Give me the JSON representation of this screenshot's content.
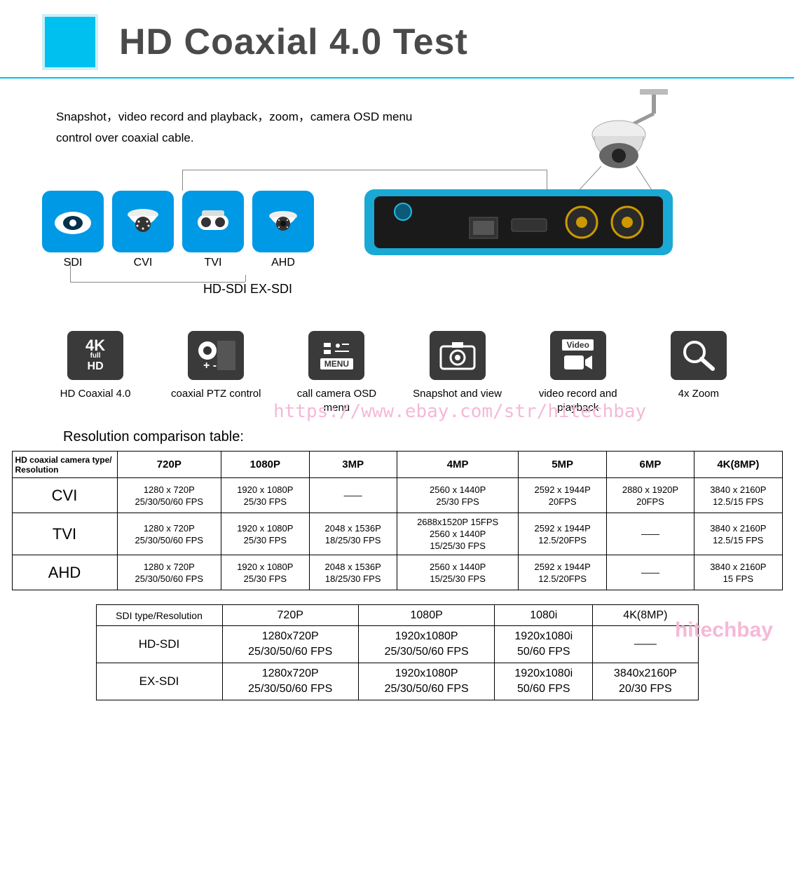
{
  "header": {
    "title": "HD Coaxial 4.0 Test",
    "square_color": "#00c0f0",
    "square_border": "#cceff8",
    "underline_color": "#00c0f0",
    "title_color": "#4a4a4a"
  },
  "intro": {
    "text": "Snapshot，video record and playback，zoom，camera OSD menu control over coaxial cable."
  },
  "camera_icons": [
    {
      "name": "sdi-icon",
      "label": "SDI"
    },
    {
      "name": "cvi-icon",
      "label": "CVI"
    },
    {
      "name": "tvi-icon",
      "label": "TVI"
    },
    {
      "name": "ahd-icon",
      "label": "AHD"
    }
  ],
  "sdi_subtypes": "HD-SDI   EX-SDI",
  "features": [
    {
      "name": "4k-icon",
      "icon_text": "4K HD",
      "label": "HD Coaxial 4.0"
    },
    {
      "name": "ptz-icon",
      "icon_text": "PTZ",
      "label": "coaxial PTZ control"
    },
    {
      "name": "menu-icon",
      "icon_text": "MENU",
      "label": "call camera OSD menu"
    },
    {
      "name": "snapshot-icon",
      "icon_text": "◉",
      "label": "Snapshot and view"
    },
    {
      "name": "video-icon",
      "icon_text": "Video",
      "label": "video record and playback"
    },
    {
      "name": "zoom-icon",
      "icon_text": "🔍",
      "label": "4x Zoom"
    }
  ],
  "watermark": {
    "url": "https://www.ebay.com/str/hitechbay",
    "tag": "hitechbay",
    "color": "#f5b8d8"
  },
  "table1": {
    "caption": "Resolution comparison table:",
    "corner": "HD coaxial camera type/ Resolution",
    "columns": [
      "720P",
      "1080P",
      "3MP",
      "4MP",
      "5MP",
      "6MP",
      "4K(8MP)"
    ],
    "rows": [
      {
        "head": "CVI",
        "cells": [
          [
            "1280 x 720P",
            "25/30/50/60 FPS"
          ],
          [
            "1920 x 1080P",
            "25/30 FPS"
          ],
          [
            "——"
          ],
          [
            "2560 x 1440P",
            "25/30 FPS"
          ],
          [
            "2592 x 1944P",
            "20FPS"
          ],
          [
            "2880 x 1920P",
            "20FPS"
          ],
          [
            "3840 x 2160P",
            "12.5/15 FPS"
          ]
        ]
      },
      {
        "head": "TVI",
        "cells": [
          [
            "1280 x 720P",
            "25/30/50/60 FPS"
          ],
          [
            "1920 x 1080P",
            "25/30 FPS"
          ],
          [
            "2048 x 1536P",
            "18/25/30 FPS"
          ],
          [
            "2688x1520P 15FPS",
            "2560 x 1440P",
            "15/25/30 FPS"
          ],
          [
            "2592 x 1944P",
            "12.5/20FPS"
          ],
          [
            "——"
          ],
          [
            "3840 x 2160P",
            "12.5/15 FPS"
          ]
        ]
      },
      {
        "head": "AHD",
        "cells": [
          [
            "1280 x 720P",
            "25/30/50/60 FPS"
          ],
          [
            "1920 x 1080P",
            "25/30 FPS"
          ],
          [
            "2048 x 1536P",
            "18/25/30 FPS"
          ],
          [
            "2560 x 1440P",
            "15/25/30 FPS"
          ],
          [
            "2592 x 1944P",
            "12.5/20FPS"
          ],
          [
            "——"
          ],
          [
            "3840 x 2160P",
            "15 FPS"
          ]
        ]
      }
    ]
  },
  "table2": {
    "corner": "SDI type/Resolution",
    "columns": [
      "720P",
      "1080P",
      "1080i",
      "4K(8MP)"
    ],
    "rows": [
      {
        "head": "HD-SDI",
        "cells": [
          [
            "1280x720P",
            "25/30/50/60 FPS"
          ],
          [
            "1920x1080P",
            "25/30/50/60 FPS"
          ],
          [
            "1920x1080i",
            "50/60 FPS"
          ],
          [
            "——"
          ]
        ]
      },
      {
        "head": "EX-SDI",
        "cells": [
          [
            "1280x720P",
            "25/30/50/60 FPS"
          ],
          [
            "1920x1080P",
            "25/30/50/60 FPS"
          ],
          [
            "1920x1080i",
            "50/60 FPS"
          ],
          [
            "3840x2160P",
            "20/30 FPS"
          ]
        ]
      }
    ]
  },
  "colors": {
    "icon_bg": "#0099e5",
    "feature_bg": "#3a3a3a",
    "border": "#000000",
    "text": "#000000"
  }
}
